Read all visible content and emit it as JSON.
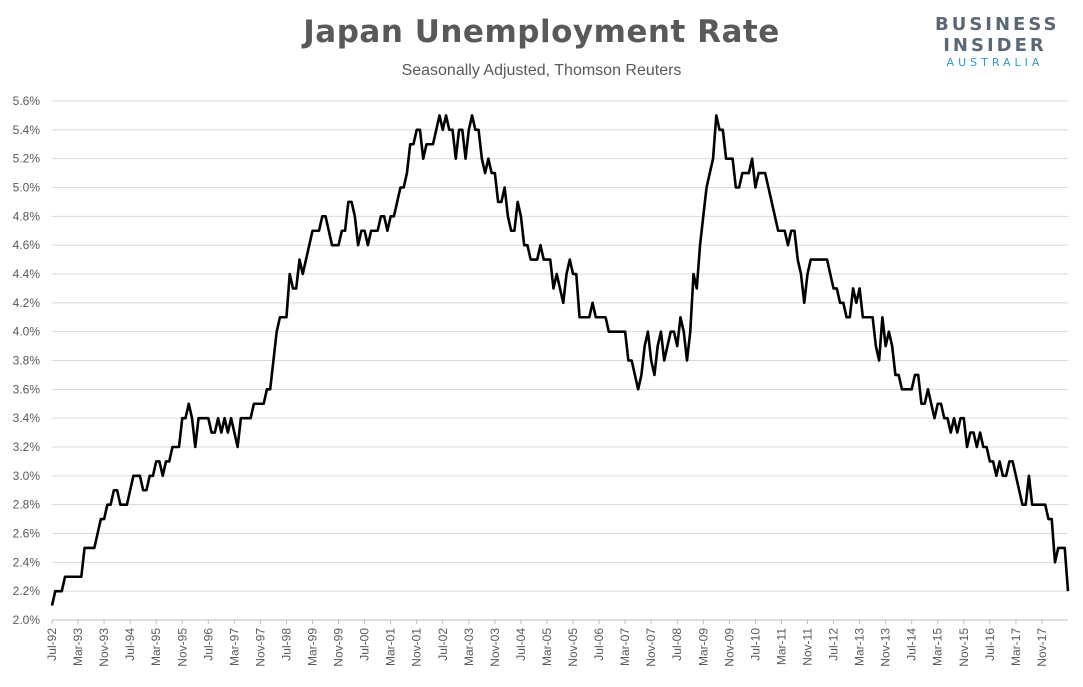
{
  "logo": {
    "line1": "BUSINESS",
    "line2": "INSIDER",
    "line3": "AUSTRALIA"
  },
  "chart_data": {
    "type": "line",
    "title": "Japan Unemployment Rate",
    "subtitle": "Seasonally Adjusted, Thomson Reuters",
    "xlabel": "",
    "ylabel": "",
    "ylim": [
      2.0,
      5.6
    ],
    "grid": true,
    "line_color": "#000000",
    "x_start": "Jul-92",
    "y_ticks": [
      "2.0%",
      "2.2%",
      "2.4%",
      "2.6%",
      "2.8%",
      "3.0%",
      "3.2%",
      "3.4%",
      "3.6%",
      "3.8%",
      "4.0%",
      "4.2%",
      "4.4%",
      "4.6%",
      "4.8%",
      "5.0%",
      "5.2%",
      "5.4%",
      "5.6%"
    ],
    "x_ticks": [
      "Jul-92",
      "Mar-93",
      "Nov-93",
      "Jul-94",
      "Mar-95",
      "Nov-95",
      "Jul-96",
      "Mar-97",
      "Nov-97",
      "Jul-98",
      "Mar-99",
      "Nov-99",
      "Jul-00",
      "Mar-01",
      "Nov-01",
      "Jul-02",
      "Mar-03",
      "Nov-03",
      "Jul-04",
      "Mar-05",
      "Nov-05",
      "Jul-06",
      "Mar-07",
      "Nov-07",
      "Jul-08",
      "Mar-09",
      "Nov-09",
      "Jul-10",
      "Mar-11",
      "Nov-11",
      "Jul-12",
      "Mar-13",
      "Nov-13",
      "Jul-14",
      "Mar-15",
      "Nov-15",
      "Jul-16",
      "Mar-17",
      "Nov-17"
    ],
    "series": [
      {
        "values": [
          2.1,
          2.2,
          2.2,
          2.2,
          2.3,
          2.3,
          2.3,
          2.3,
          2.3,
          2.3,
          2.5,
          2.5,
          2.5,
          2.5,
          2.6,
          2.7,
          2.7,
          2.8,
          2.8,
          2.9,
          2.9,
          2.8,
          2.8,
          2.8,
          2.9,
          3.0,
          3.0,
          3.0,
          2.9,
          2.9,
          3.0,
          3.0,
          3.1,
          3.1,
          3.0,
          3.1,
          3.1,
          3.2,
          3.2,
          3.2,
          3.4,
          3.4,
          3.5,
          3.4,
          3.2,
          3.4,
          3.4,
          3.4,
          3.4,
          3.3,
          3.3,
          3.4,
          3.3,
          3.4,
          3.3,
          3.4,
          3.3,
          3.2,
          3.4,
          3.4,
          3.4,
          3.4,
          3.5,
          3.5,
          3.5,
          3.5,
          3.6,
          3.6,
          3.8,
          4.0,
          4.1,
          4.1,
          4.1,
          4.4,
          4.3,
          4.3,
          4.5,
          4.4,
          4.5,
          4.6,
          4.7,
          4.7,
          4.7,
          4.8,
          4.8,
          4.7,
          4.6,
          4.6,
          4.6,
          4.7,
          4.7,
          4.9,
          4.9,
          4.8,
          4.6,
          4.7,
          4.7,
          4.6,
          4.7,
          4.7,
          4.7,
          4.8,
          4.8,
          4.7,
          4.8,
          4.8,
          4.9,
          5.0,
          5.0,
          5.1,
          5.3,
          5.3,
          5.4,
          5.4,
          5.2,
          5.3,
          5.3,
          5.3,
          5.4,
          5.5,
          5.4,
          5.5,
          5.4,
          5.4,
          5.2,
          5.4,
          5.4,
          5.2,
          5.4,
          5.5,
          5.4,
          5.4,
          5.2,
          5.1,
          5.2,
          5.1,
          5.1,
          4.9,
          4.9,
          5.0,
          4.8,
          4.7,
          4.7,
          4.9,
          4.8,
          4.6,
          4.6,
          4.5,
          4.5,
          4.5,
          4.6,
          4.5,
          4.5,
          4.5,
          4.3,
          4.4,
          4.3,
          4.2,
          4.4,
          4.5,
          4.4,
          4.4,
          4.1,
          4.1,
          4.1,
          4.1,
          4.2,
          4.1,
          4.1,
          4.1,
          4.1,
          4.0,
          4.0,
          4.0,
          4.0,
          4.0,
          4.0,
          3.8,
          3.8,
          3.7,
          3.6,
          3.7,
          3.9,
          4.0,
          3.8,
          3.7,
          3.9,
          4.0,
          3.8,
          3.9,
          4.0,
          4.0,
          3.9,
          4.1,
          4.0,
          3.8,
          4.0,
          4.4,
          4.3,
          4.6,
          4.8,
          5.0,
          5.1,
          5.2,
          5.5,
          5.4,
          5.4,
          5.2,
          5.2,
          5.2,
          5.0,
          5.0,
          5.1,
          5.1,
          5.1,
          5.2,
          5.0,
          5.1,
          5.1,
          5.1,
          5.0,
          4.9,
          4.8,
          4.7,
          4.7,
          4.7,
          4.6,
          4.7,
          4.7,
          4.5,
          4.4,
          4.2,
          4.4,
          4.5,
          4.5,
          4.5,
          4.5,
          4.5,
          4.5,
          4.4,
          4.3,
          4.3,
          4.2,
          4.2,
          4.1,
          4.1,
          4.3,
          4.2,
          4.3,
          4.1,
          4.1,
          4.1,
          4.1,
          3.9,
          3.8,
          4.1,
          3.9,
          4.0,
          3.9,
          3.7,
          3.7,
          3.6,
          3.6,
          3.6,
          3.6,
          3.7,
          3.7,
          3.5,
          3.5,
          3.6,
          3.5,
          3.4,
          3.5,
          3.5,
          3.4,
          3.4,
          3.3,
          3.4,
          3.3,
          3.4,
          3.4,
          3.2,
          3.3,
          3.3,
          3.2,
          3.3,
          3.2,
          3.2,
          3.1,
          3.1,
          3.0,
          3.1,
          3.0,
          3.0,
          3.1,
          3.1,
          3.0,
          2.9,
          2.8,
          2.8,
          3.0,
          2.8,
          2.8,
          2.8,
          2.8,
          2.8,
          2.7,
          2.7,
          2.4,
          2.5,
          2.5,
          2.5,
          2.2
        ]
      }
    ]
  }
}
